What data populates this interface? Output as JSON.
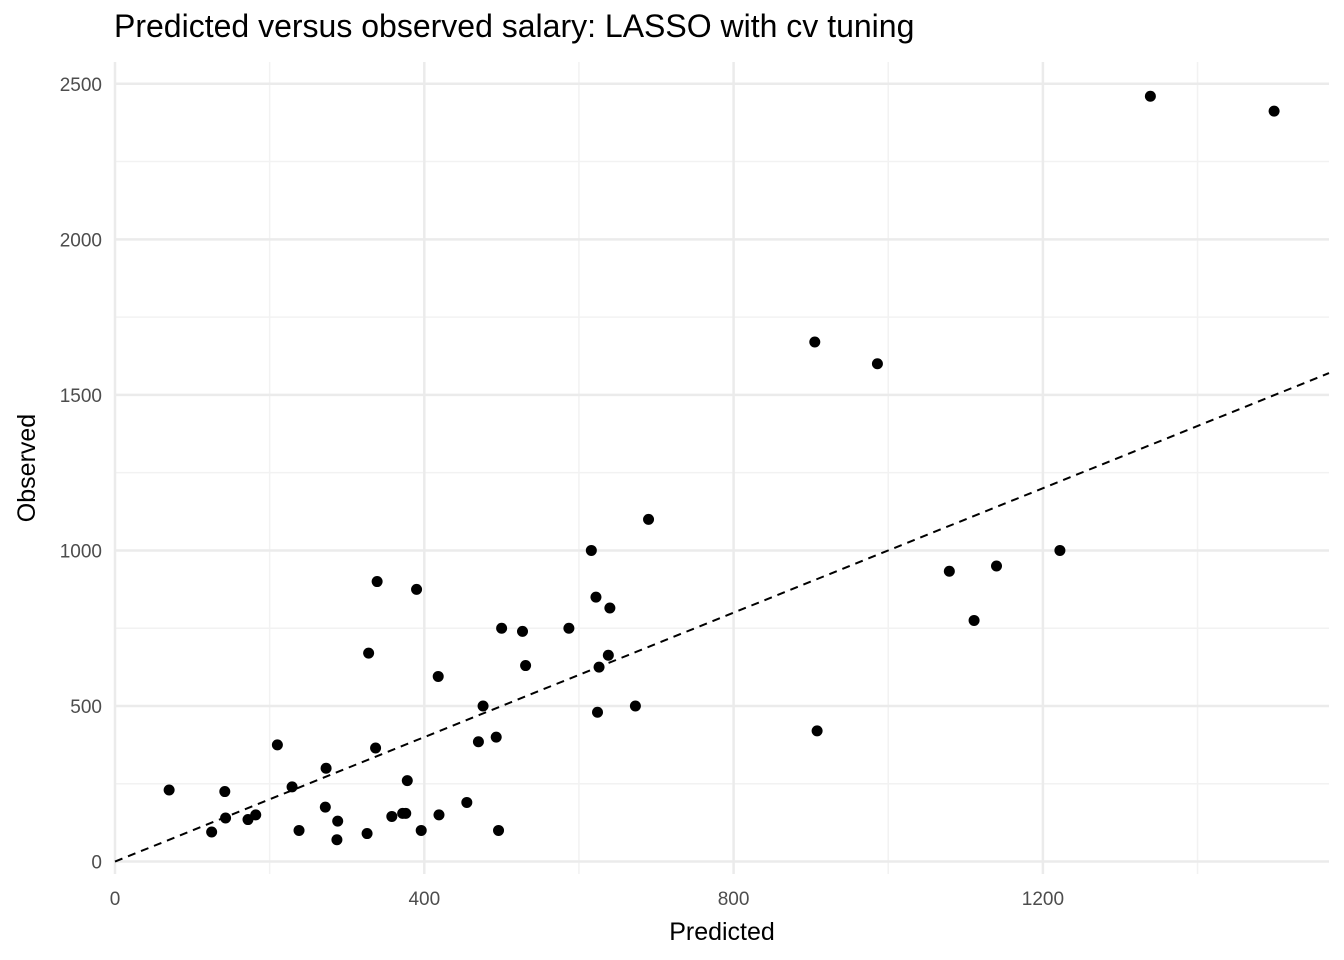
{
  "chart_data": {
    "type": "scatter",
    "title": "Predicted versus observed salary: LASSO with cv tuning",
    "xlabel": "Predicted",
    "ylabel": "Observed",
    "xlim": [
      0,
      1570
    ],
    "ylim": [
      -40,
      2570
    ],
    "x_ticks": [
      0,
      400,
      800,
      1200
    ],
    "y_ticks": [
      0,
      500,
      1000,
      1500,
      2000,
      2500
    ],
    "x_tick_labels": [
      "0",
      "400",
      "800",
      "1200"
    ],
    "y_tick_labels": [
      "0",
      "500",
      "1000",
      "1500",
      "2000",
      "2500"
    ],
    "grid": true,
    "reference_line": {
      "style": "dashed",
      "slope": 1,
      "intercept": 0
    },
    "points": [
      {
        "x": 70,
        "y": 230
      },
      {
        "x": 125,
        "y": 95
      },
      {
        "x": 142,
        "y": 225
      },
      {
        "x": 143,
        "y": 140
      },
      {
        "x": 172,
        "y": 135
      },
      {
        "x": 182,
        "y": 150
      },
      {
        "x": 210,
        "y": 375
      },
      {
        "x": 229,
        "y": 240
      },
      {
        "x": 238,
        "y": 100
      },
      {
        "x": 272,
        "y": 175
      },
      {
        "x": 273,
        "y": 300
      },
      {
        "x": 287,
        "y": 70
      },
      {
        "x": 288,
        "y": 130
      },
      {
        "x": 326,
        "y": 90
      },
      {
        "x": 328,
        "y": 670
      },
      {
        "x": 337,
        "y": 365
      },
      {
        "x": 339,
        "y": 900
      },
      {
        "x": 358,
        "y": 145
      },
      {
        "x": 372,
        "y": 155
      },
      {
        "x": 376,
        "y": 155
      },
      {
        "x": 378,
        "y": 260
      },
      {
        "x": 390,
        "y": 875
      },
      {
        "x": 396,
        "y": 100
      },
      {
        "x": 418,
        "y": 595
      },
      {
        "x": 419,
        "y": 150
      },
      {
        "x": 455,
        "y": 190
      },
      {
        "x": 470,
        "y": 385
      },
      {
        "x": 476,
        "y": 500
      },
      {
        "x": 493,
        "y": 400
      },
      {
        "x": 496,
        "y": 100
      },
      {
        "x": 500,
        "y": 750
      },
      {
        "x": 527,
        "y": 740
      },
      {
        "x": 531,
        "y": 630
      },
      {
        "x": 587,
        "y": 750
      },
      {
        "x": 616,
        "y": 1000
      },
      {
        "x": 622,
        "y": 850
      },
      {
        "x": 624,
        "y": 480
      },
      {
        "x": 626,
        "y": 625
      },
      {
        "x": 638,
        "y": 663
      },
      {
        "x": 640,
        "y": 815
      },
      {
        "x": 673,
        "y": 500
      },
      {
        "x": 690,
        "y": 1100
      },
      {
        "x": 905,
        "y": 1670
      },
      {
        "x": 908,
        "y": 420
      },
      {
        "x": 986,
        "y": 1600
      },
      {
        "x": 1079,
        "y": 933
      },
      {
        "x": 1111,
        "y": 775
      },
      {
        "x": 1140,
        "y": 950
      },
      {
        "x": 1222,
        "y": 1000
      },
      {
        "x": 1339,
        "y": 2460
      },
      {
        "x": 1499,
        "y": 2412
      }
    ],
    "colors": {
      "point": "#000000",
      "grid_major": "#ebebeb",
      "grid_minor": "#f2f2f2",
      "line": "#000000"
    }
  }
}
